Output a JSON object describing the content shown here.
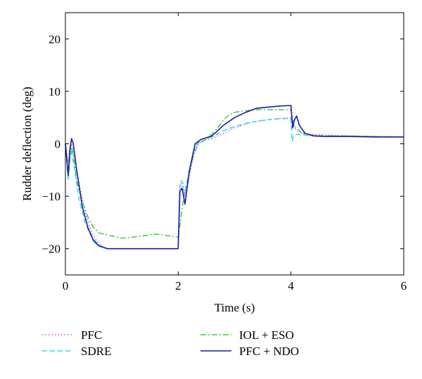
{
  "chart_data": {
    "type": "line",
    "xlabel": "Time (s)",
    "ylabel": "Rudder deflection (deg)",
    "xlim": [
      0,
      6
    ],
    "ylim": [
      -25,
      25
    ],
    "xticks": [
      0,
      2,
      4,
      6
    ],
    "yticks": [
      -20,
      -10,
      0,
      10,
      20
    ],
    "grid": false,
    "legend_position": "bottom",
    "series": [
      {
        "name": "PFC",
        "color": "#d44fd4",
        "style": "dotted",
        "points": [
          [
            0,
            0
          ],
          [
            0.05,
            -3.5
          ],
          [
            0.1,
            0.3
          ],
          [
            0.15,
            -2
          ],
          [
            0.25,
            -8
          ],
          [
            0.35,
            -13
          ],
          [
            0.45,
            -16.5
          ],
          [
            0.55,
            -18.5
          ],
          [
            0.65,
            -19.6
          ],
          [
            0.75,
            -20
          ],
          [
            2.0,
            -20
          ],
          [
            2.04,
            -9
          ],
          [
            2.08,
            -7.5
          ],
          [
            2.12,
            -10
          ],
          [
            2.2,
            -6
          ],
          [
            2.3,
            -1
          ],
          [
            2.4,
            0.5
          ],
          [
            2.6,
            1
          ],
          [
            2.8,
            2
          ],
          [
            3.0,
            3
          ],
          [
            3.2,
            3.8
          ],
          [
            3.4,
            4.3
          ],
          [
            3.6,
            4.6
          ],
          [
            3.8,
            4.8
          ],
          [
            4.0,
            5
          ],
          [
            4.05,
            3.5
          ],
          [
            4.1,
            2.5
          ],
          [
            4.2,
            2
          ],
          [
            4.4,
            1.8
          ],
          [
            4.6,
            1.7
          ],
          [
            5.0,
            1.5
          ],
          [
            5.5,
            1.4
          ],
          [
            6.0,
            1.3
          ]
        ]
      },
      {
        "name": "SDRE",
        "color": "#30d8e8",
        "style": "dashed",
        "points": [
          [
            0,
            0
          ],
          [
            0.05,
            -7
          ],
          [
            0.1,
            -1
          ],
          [
            0.15,
            -4
          ],
          [
            0.25,
            -11
          ],
          [
            0.35,
            -15
          ],
          [
            0.45,
            -17.5
          ],
          [
            0.55,
            -18.8
          ],
          [
            0.65,
            -19.6
          ],
          [
            0.75,
            -20
          ],
          [
            2.0,
            -20
          ],
          [
            2.03,
            -8
          ],
          [
            2.06,
            -7
          ],
          [
            2.1,
            -10
          ],
          [
            2.2,
            -5
          ],
          [
            2.3,
            -0.5
          ],
          [
            2.4,
            0.8
          ],
          [
            2.6,
            1.3
          ],
          [
            2.8,
            2.5
          ],
          [
            3.0,
            3.3
          ],
          [
            3.2,
            3.9
          ],
          [
            3.4,
            4.3
          ],
          [
            3.6,
            4.6
          ],
          [
            3.8,
            4.8
          ],
          [
            4.0,
            4.8
          ],
          [
            4.02,
            0.5
          ],
          [
            4.05,
            1.5
          ],
          [
            4.1,
            1.8
          ],
          [
            4.3,
            1.6
          ],
          [
            4.6,
            1.5
          ],
          [
            5.0,
            1.5
          ],
          [
            5.5,
            1.4
          ],
          [
            6.0,
            1.3
          ]
        ]
      },
      {
        "name": "IOL + ESO",
        "color": "#3dcc3d",
        "style": "dashdot",
        "points": [
          [
            0,
            0
          ],
          [
            0.05,
            -6
          ],
          [
            0.1,
            0
          ],
          [
            0.15,
            -3
          ],
          [
            0.2,
            -7
          ],
          [
            0.3,
            -11
          ],
          [
            0.4,
            -14
          ],
          [
            0.5,
            -16
          ],
          [
            0.6,
            -17
          ],
          [
            0.8,
            -17.5
          ],
          [
            1.0,
            -18
          ],
          [
            1.2,
            -17.8
          ],
          [
            1.4,
            -17.5
          ],
          [
            1.6,
            -17.2
          ],
          [
            1.8,
            -17.5
          ],
          [
            2.0,
            -17.8
          ],
          [
            2.05,
            -14
          ],
          [
            2.1,
            -10
          ],
          [
            2.15,
            -8
          ],
          [
            2.25,
            -3
          ],
          [
            2.35,
            0
          ],
          [
            2.5,
            0.8
          ],
          [
            2.7,
            3
          ],
          [
            2.8,
            4.5
          ],
          [
            2.9,
            5.5
          ],
          [
            3.0,
            6
          ],
          [
            3.2,
            6.3
          ],
          [
            3.4,
            6.5
          ],
          [
            3.6,
            6.5
          ],
          [
            3.8,
            6.5
          ],
          [
            4.0,
            6.5
          ],
          [
            4.05,
            3.5
          ],
          [
            4.1,
            3
          ],
          [
            4.2,
            2
          ],
          [
            4.4,
            1.6
          ],
          [
            4.6,
            1.5
          ],
          [
            5.0,
            1.5
          ],
          [
            5.5,
            1.4
          ],
          [
            6.0,
            1.3
          ]
        ]
      },
      {
        "name": "PFC + NDO",
        "color": "#1a1aa8",
        "style": "solid",
        "points": [
          [
            0,
            0
          ],
          [
            0.05,
            -6
          ],
          [
            0.08,
            -1
          ],
          [
            0.11,
            1
          ],
          [
            0.14,
            0
          ],
          [
            0.2,
            -5
          ],
          [
            0.3,
            -12
          ],
          [
            0.4,
            -16
          ],
          [
            0.5,
            -18.5
          ],
          [
            0.6,
            -19.5
          ],
          [
            0.75,
            -20
          ],
          [
            2.0,
            -20
          ],
          [
            2.03,
            -9
          ],
          [
            2.07,
            -8.5
          ],
          [
            2.12,
            -11.5
          ],
          [
            2.2,
            -5
          ],
          [
            2.3,
            0
          ],
          [
            2.4,
            0.8
          ],
          [
            2.6,
            1.5
          ],
          [
            2.8,
            3.5
          ],
          [
            3.0,
            5
          ],
          [
            3.2,
            6
          ],
          [
            3.4,
            6.8
          ],
          [
            3.6,
            7
          ],
          [
            3.8,
            7.2
          ],
          [
            4.0,
            7.3
          ],
          [
            4.03,
            3
          ],
          [
            4.06,
            4.5
          ],
          [
            4.1,
            5.3
          ],
          [
            4.15,
            3.5
          ],
          [
            4.25,
            2
          ],
          [
            4.4,
            1.5
          ],
          [
            4.6,
            1.4
          ],
          [
            5.0,
            1.4
          ],
          [
            5.5,
            1.3
          ],
          [
            6.0,
            1.3
          ]
        ]
      }
    ]
  }
}
